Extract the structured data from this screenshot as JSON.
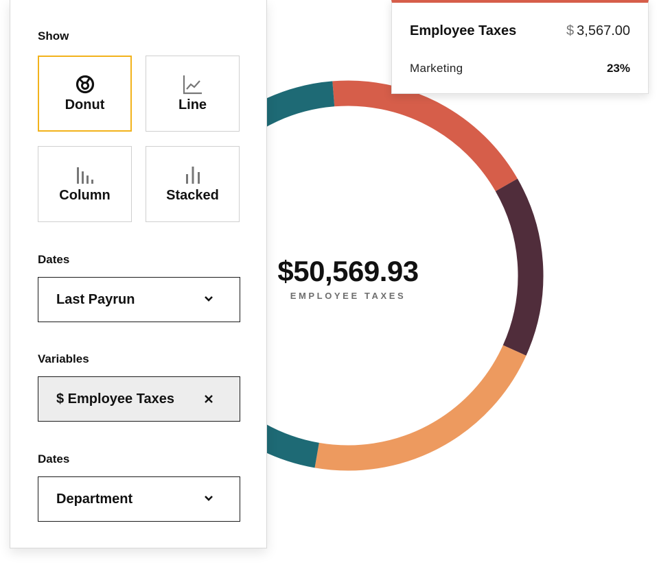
{
  "panel": {
    "show_label": "Show",
    "chart_types": [
      {
        "label": "Donut",
        "icon": "donut-icon",
        "selected": true
      },
      {
        "label": "Line",
        "icon": "line-chart-icon",
        "selected": false
      },
      {
        "label": "Column",
        "icon": "column-chart-icon",
        "selected": false
      },
      {
        "label": "Stacked",
        "icon": "stacked-chart-icon",
        "selected": false
      }
    ],
    "dates_label": "Dates",
    "dates_value": "Last Payrun",
    "variables_label": "Variables",
    "variable_value": "$ Employee Taxes",
    "group_label": "Dates",
    "group_value": "Department"
  },
  "tooltip": {
    "title": "Employee Taxes",
    "currency": "$",
    "amount": "3,567.00",
    "department": "Marketing",
    "percent": "23%"
  },
  "chart_data": {
    "type": "pie",
    "total": "$50,569.93",
    "caption": "EMPLOYEE TAXES",
    "slices": [
      {
        "value": 18,
        "color": "#d65e4a"
      },
      {
        "value": 15,
        "color": "#502d3b"
      },
      {
        "value": 21,
        "color": "#ed9a5f"
      },
      {
        "value": 46,
        "color": "#1e6a75"
      }
    ]
  },
  "colors": {
    "accent_selected": "#f2b21b",
    "tooltip_accent": "#d65e4a"
  }
}
